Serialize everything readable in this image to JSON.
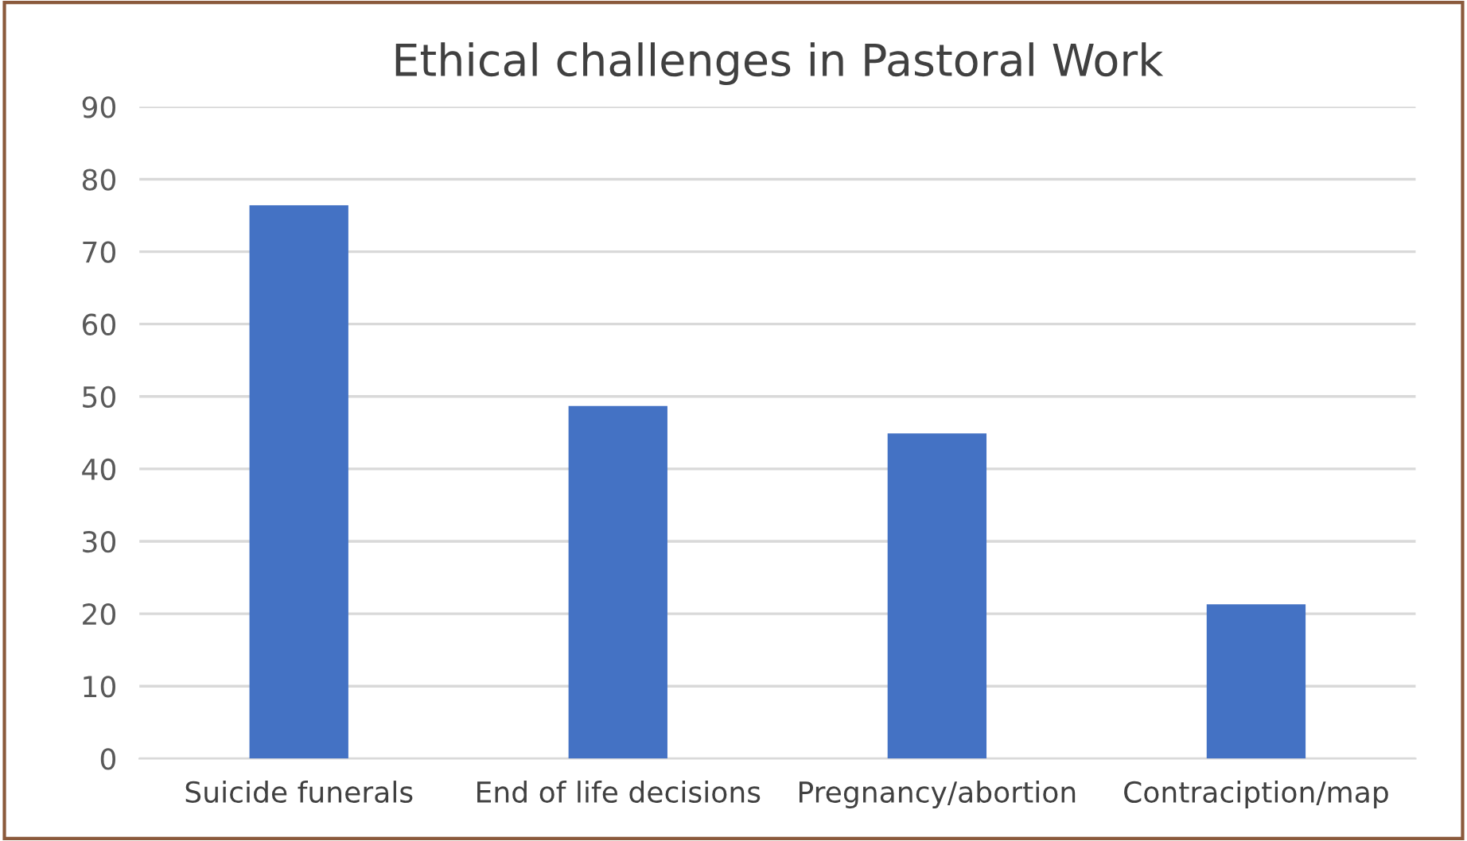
{
  "chart_data": {
    "type": "bar",
    "title": "Ethical challenges in Pastoral Work",
    "categories": [
      "Suicide funerals",
      "End of life decisions",
      "Pregnancy/abortion",
      "Contraciption/map"
    ],
    "values": [
      76.4,
      48.7,
      44.9,
      21.3
    ],
    "color": "#4472c4",
    "ylim": [
      0,
      90
    ],
    "yticks": [
      0,
      10,
      20,
      30,
      40,
      50,
      60,
      70,
      80,
      90
    ],
    "grid": "y"
  }
}
